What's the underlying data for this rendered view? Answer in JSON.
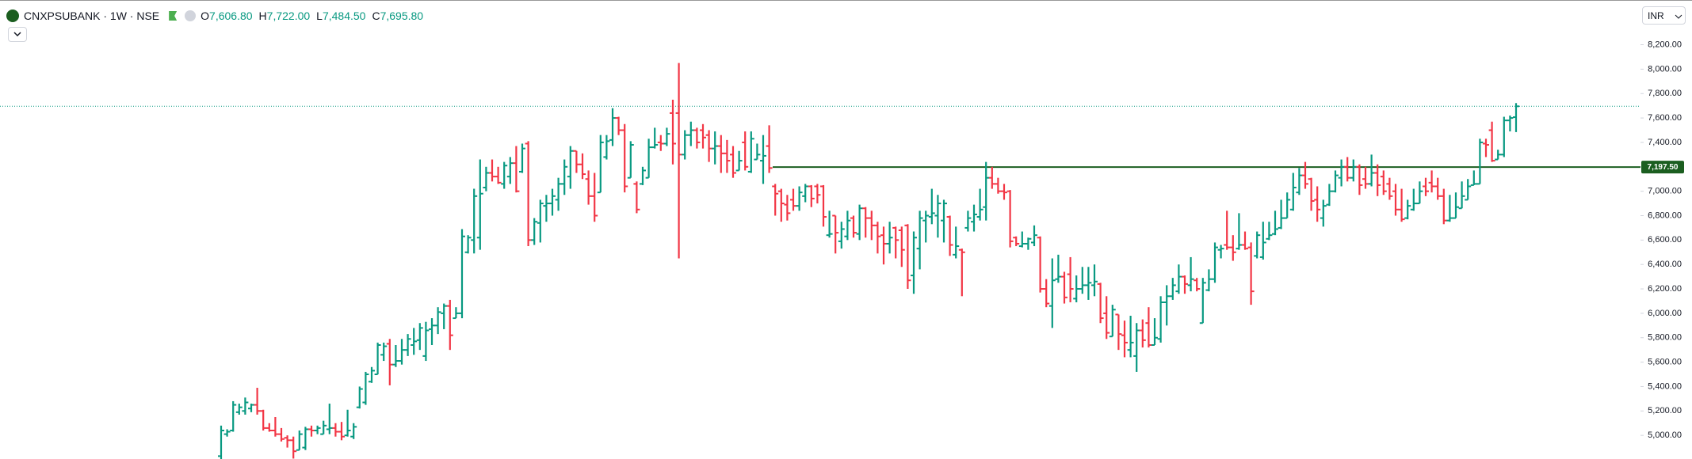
{
  "header": {
    "symbol": "CNXPSUBANK · 1W · NSE",
    "currency": "INR",
    "legend": [
      {
        "label": "O",
        "value": "7,606.80"
      },
      {
        "label": "H",
        "value": "7,722.00"
      },
      {
        "label": "L",
        "value": "7,484.50"
      },
      {
        "label": "C",
        "value": "7,695.80"
      }
    ]
  },
  "chart_data": {
    "type": "ohlc",
    "up_color": "#089981",
    "down_color": "#f23645",
    "ylim": [
      4800,
      8560
    ],
    "yticks": [
      {
        "value": 5000,
        "label": "5,000.00"
      },
      {
        "value": 5200,
        "label": "5,200.00"
      },
      {
        "value": 5400,
        "label": "5,400.00"
      },
      {
        "value": 5600,
        "label": "5,600.00"
      },
      {
        "value": 5800,
        "label": "5,800.00"
      },
      {
        "value": 6000,
        "label": "6,000.00"
      },
      {
        "value": 6200,
        "label": "6,200.00"
      },
      {
        "value": 6400,
        "label": "6,400.00"
      },
      {
        "value": 6600,
        "label": "6,600.00"
      },
      {
        "value": 6800,
        "label": "6,800.00"
      },
      {
        "value": 7000,
        "label": "7,000.00"
      },
      {
        "value": 7200,
        "label": "7,200.00"
      },
      {
        "value": 7400,
        "label": "7,400.00"
      },
      {
        "value": 7600,
        "label": "7,600.00"
      },
      {
        "value": 7800,
        "label": "7,800.00"
      },
      {
        "value": 8000,
        "label": "8,000.00"
      },
      {
        "value": 8200,
        "label": "8,200.00"
      }
    ],
    "hline": {
      "value": 7197.5,
      "label": "7,197.50",
      "color": "#1b5e20"
    },
    "ohlc": [
      [
        4830,
        5080,
        4800,
        5040
      ],
      [
        5010,
        5050,
        4990,
        5030
      ],
      [
        5040,
        5280,
        5030,
        5250
      ],
      [
        5190,
        5260,
        5170,
        5230
      ],
      [
        5200,
        5310,
        5170,
        5270
      ],
      [
        5220,
        5260,
        5190,
        5250
      ],
      [
        5250,
        5390,
        5170,
        5200
      ],
      [
        5200,
        5210,
        5040,
        5060
      ],
      [
        5060,
        5100,
        5030,
        5040
      ],
      [
        5040,
        5150,
        4990,
        5010
      ],
      [
        5010,
        5060,
        4950,
        4970
      ],
      [
        4980,
        5000,
        4900,
        4960
      ],
      [
        4960,
        4990,
        4810,
        4870
      ],
      [
        4880,
        5040,
        4880,
        5010
      ],
      [
        4900,
        5070,
        4880,
        5050
      ],
      [
        5050,
        5080,
        4990,
        5040
      ],
      [
        5040,
        5080,
        5010,
        5060
      ],
      [
        5010,
        5120,
        5010,
        5080
      ],
      [
        5050,
        5260,
        5010,
        5060
      ],
      [
        5060,
        5100,
        4990,
        5030
      ],
      [
        5030,
        5110,
        4960,
        4990
      ],
      [
        5000,
        5210,
        4990,
        5040
      ],
      [
        4990,
        5100,
        4970,
        5070
      ],
      [
        5230,
        5400,
        5220,
        5380
      ],
      [
        5270,
        5520,
        5250,
        5500
      ],
      [
        5440,
        5560,
        5430,
        5530
      ],
      [
        5500,
        5760,
        5500,
        5740
      ],
      [
        5660,
        5760,
        5610,
        5730
      ],
      [
        5750,
        5790,
        5410,
        5580
      ],
      [
        5580,
        5740,
        5560,
        5610
      ],
      [
        5610,
        5790,
        5580,
        5700
      ],
      [
        5700,
        5830,
        5650,
        5790
      ],
      [
        5740,
        5880,
        5660,
        5770
      ],
      [
        5780,
        5920,
        5700,
        5880
      ],
      [
        5650,
        5930,
        5610,
        5860
      ],
      [
        5870,
        5960,
        5740,
        5900
      ],
      [
        5900,
        6050,
        5830,
        6010
      ],
      [
        6000,
        6080,
        5870,
        6060
      ],
      [
        6060,
        6110,
        5700,
        5820
      ],
      [
        5960,
        6050,
        5960,
        6000
      ],
      [
        6000,
        6690,
        5960,
        6630
      ],
      [
        6500,
        6640,
        6490,
        6620
      ],
      [
        6600,
        7020,
        6490,
        6960
      ],
      [
        6620,
        7260,
        6520,
        6980
      ],
      [
        7030,
        7200,
        7000,
        7150
      ],
      [
        7150,
        7260,
        7080,
        7120
      ],
      [
        7120,
        7200,
        7060,
        7070
      ],
      [
        7060,
        7240,
        7020,
        7210
      ],
      [
        7120,
        7280,
        7060,
        7230
      ],
      [
        7230,
        7370,
        6990,
        7000
      ],
      [
        7160,
        7390,
        7150,
        7350
      ],
      [
        7390,
        7410,
        6550,
        6600
      ],
      [
        6600,
        6780,
        6560,
        6750
      ],
      [
        6740,
        6930,
        6580,
        6900
      ],
      [
        6880,
        6970,
        6750,
        6900
      ],
      [
        6900,
        7020,
        6800,
        6960
      ],
      [
        6930,
        7110,
        6840,
        7060
      ],
      [
        7060,
        7260,
        6970,
        7200
      ],
      [
        7120,
        7370,
        7020,
        7330
      ],
      [
        7330,
        7330,
        7150,
        7220
      ],
      [
        7220,
        7310,
        7100,
        7140
      ],
      [
        7100,
        7170,
        6890,
        6960
      ],
      [
        6960,
        7150,
        6750,
        6800
      ],
      [
        6990,
        7460,
        6990,
        7400
      ],
      [
        7280,
        7460,
        7260,
        7410
      ],
      [
        7420,
        7680,
        7370,
        7600
      ],
      [
        7600,
        7610,
        7460,
        7500
      ],
      [
        7500,
        7550,
        6990,
        7040
      ],
      [
        7110,
        7410,
        7110,
        7380
      ],
      [
        7060,
        7080,
        6820,
        6850
      ],
      [
        7060,
        7200,
        7050,
        7170
      ],
      [
        7110,
        7430,
        7110,
        7360
      ],
      [
        7360,
        7520,
        7350,
        7380
      ],
      [
        7400,
        7460,
        7330,
        7390
      ],
      [
        7390,
        7520,
        7370,
        7470
      ],
      [
        7640,
        7750,
        7220,
        7390
      ],
      [
        7640,
        8050,
        6450,
        7300
      ],
      [
        7300,
        7500,
        7260,
        7460
      ],
      [
        7460,
        7570,
        7370,
        7500
      ],
      [
        7500,
        7520,
        7350,
        7400
      ],
      [
        7500,
        7550,
        7350,
        7440
      ],
      [
        7460,
        7500,
        7240,
        7350
      ],
      [
        7350,
        7490,
        7220,
        7370
      ],
      [
        7370,
        7460,
        7150,
        7310
      ],
      [
        7310,
        7420,
        7150,
        7250
      ],
      [
        7300,
        7370,
        7110,
        7150
      ],
      [
        7170,
        7330,
        7170,
        7250
      ],
      [
        7400,
        7490,
        7170,
        7200
      ],
      [
        7160,
        7490,
        7150,
        7430
      ],
      [
        7260,
        7390,
        7260,
        7300
      ],
      [
        7250,
        7460,
        7060,
        7290
      ],
      [
        7370,
        7540,
        7150,
        7190
      ],
      [
        7040,
        7060,
        6800,
        6980
      ],
      [
        7000,
        7020,
        6750,
        6900
      ],
      [
        6890,
        6970,
        6760,
        6820
      ],
      [
        6930,
        7020,
        6840,
        6880
      ],
      [
        6880,
        7040,
        6840,
        6990
      ],
      [
        6960,
        7060,
        6910,
        7040
      ],
      [
        7040,
        7050,
        6870,
        6940
      ],
      [
        7040,
        7060,
        6900,
        6970
      ],
      [
        7040,
        7050,
        6710,
        6790
      ],
      [
        6640,
        6840,
        6620,
        6650
      ],
      [
        6800,
        6800,
        6490,
        6660
      ],
      [
        6590,
        6750,
        6530,
        6690
      ],
      [
        6630,
        6840,
        6600,
        6760
      ],
      [
        6780,
        6800,
        6620,
        6660
      ],
      [
        6650,
        6890,
        6600,
        6860
      ],
      [
        6860,
        6870,
        6620,
        6780
      ],
      [
        6780,
        6840,
        6600,
        6720
      ],
      [
        6720,
        6750,
        6490,
        6630
      ],
      [
        6640,
        6710,
        6400,
        6570
      ],
      [
        6570,
        6750,
        6490,
        6620
      ],
      [
        6700,
        6710,
        6450,
        6600
      ],
      [
        6680,
        6710,
        6380,
        6520
      ],
      [
        6720,
        6730,
        6200,
        6270
      ],
      [
        6310,
        6670,
        6160,
        6620
      ],
      [
        6530,
        6840,
        6360,
        6780
      ],
      [
        6760,
        6840,
        6580,
        6800
      ],
      [
        6790,
        7020,
        6730,
        6820
      ],
      [
        6800,
        6970,
        6620,
        6900
      ],
      [
        6760,
        6930,
        6580,
        6900
      ],
      [
        6790,
        6800,
        6470,
        6560
      ],
      [
        6480,
        6710,
        6450,
        6550
      ],
      [
        6520,
        6530,
        6140,
        6500
      ],
      [
        6700,
        6840,
        6670,
        6780
      ],
      [
        6750,
        6890,
        6670,
        6810
      ],
      [
        6790,
        7020,
        6760,
        6850
      ],
      [
        6870,
        7240,
        6760,
        7110
      ],
      [
        7110,
        7200,
        7020,
        7060
      ],
      [
        7060,
        7110,
        6980,
        7000
      ],
      [
        7000,
        7060,
        6930,
        6990
      ],
      [
        7000,
        7010,
        6540,
        6590
      ],
      [
        6620,
        6630,
        6550,
        6570
      ],
      [
        6550,
        6670,
        6540,
        6570
      ],
      [
        6570,
        6620,
        6520,
        6610
      ],
      [
        6580,
        6720,
        6550,
        6640
      ],
      [
        6620,
        6630,
        6170,
        6200
      ],
      [
        6200,
        6280,
        6050,
        6080
      ],
      [
        6060,
        6450,
        5880,
        6270
      ],
      [
        6280,
        6480,
        6250,
        6300
      ],
      [
        6300,
        6340,
        6080,
        6130
      ],
      [
        6320,
        6460,
        6090,
        6200
      ],
      [
        6120,
        6310,
        6090,
        6200
      ],
      [
        6200,
        6380,
        6160,
        6230
      ],
      [
        6230,
        6380,
        6110,
        6250
      ],
      [
        6230,
        6400,
        6140,
        6260
      ],
      [
        6240,
        6250,
        5920,
        5960
      ],
      [
        6000,
        6140,
        5790,
        5840
      ],
      [
        5810,
        6070,
        5810,
        6030
      ],
      [
        5990,
        5990,
        5700,
        5830
      ],
      [
        5820,
        5940,
        5640,
        5760
      ],
      [
        5700,
        5980,
        5640,
        5760
      ],
      [
        5650,
        5920,
        5520,
        5860
      ],
      [
        5860,
        5950,
        5720,
        5780
      ],
      [
        5920,
        6050,
        5720,
        5740
      ],
      [
        5740,
        5960,
        5740,
        5800
      ],
      [
        5790,
        6140,
        5760,
        6090
      ],
      [
        6090,
        6230,
        5900,
        6140
      ],
      [
        6140,
        6290,
        6110,
        6230
      ],
      [
        6180,
        6400,
        6160,
        6300
      ],
      [
        6300,
        6310,
        6160,
        6240
      ],
      [
        6230,
        6460,
        6180,
        6280
      ],
      [
        6270,
        6290,
        6180,
        6200
      ],
      [
        5920,
        6290,
        5920,
        6250
      ],
      [
        6190,
        6360,
        6180,
        6280
      ],
      [
        6280,
        6580,
        6250,
        6540
      ],
      [
        6520,
        6560,
        6450,
        6530
      ],
      [
        6560,
        6840,
        6520,
        6540
      ],
      [
        6540,
        6640,
        6430,
        6500
      ],
      [
        6530,
        6820,
        6520,
        6560
      ],
      [
        6560,
        6670,
        6520,
        6530
      ],
      [
        6540,
        6580,
        6070,
        6180
      ],
      [
        6470,
        6670,
        6450,
        6640
      ],
      [
        6460,
        6750,
        6440,
        6580
      ],
      [
        6610,
        6750,
        6600,
        6640
      ],
      [
        6650,
        6840,
        6640,
        6690
      ],
      [
        6700,
        6930,
        6690,
        6780
      ],
      [
        6780,
        6990,
        6780,
        6930
      ],
      [
        6850,
        7150,
        6840,
        7030
      ],
      [
        6990,
        7190,
        6970,
        7130
      ],
      [
        7130,
        7240,
        7020,
        7060
      ],
      [
        7100,
        7110,
        6840,
        6920
      ],
      [
        6930,
        7040,
        6750,
        6850
      ],
      [
        6780,
        6930,
        6710,
        6880
      ],
      [
        6890,
        7060,
        6880,
        7000
      ],
      [
        7000,
        7170,
        6990,
        7130
      ],
      [
        7110,
        7260,
        7040,
        7200
      ],
      [
        7200,
        7280,
        7080,
        7110
      ],
      [
        7110,
        7260,
        7080,
        7200
      ],
      [
        7200,
        7220,
        6970,
        7050
      ],
      [
        7100,
        7200,
        7020,
        7060
      ],
      [
        7060,
        7300,
        7040,
        7150
      ],
      [
        7150,
        7220,
        6960,
        7050
      ],
      [
        7120,
        7170,
        6970,
        7000
      ],
      [
        7060,
        7110,
        6930,
        6960
      ],
      [
        7000,
        7060,
        6800,
        6850
      ],
      [
        6850,
        7020,
        6750,
        6770
      ],
      [
        6780,
        6930,
        6770,
        6880
      ],
      [
        6850,
        7020,
        6840,
        6900
      ],
      [
        6900,
        7080,
        6900,
        7000
      ],
      [
        7040,
        7110,
        6960,
        7000
      ],
      [
        7070,
        7170,
        6990,
        7040
      ],
      [
        7040,
        7110,
        6930,
        6960
      ],
      [
        6960,
        7020,
        6730,
        6760
      ],
      [
        6760,
        6970,
        6750,
        6780
      ],
      [
        6780,
        6990,
        6780,
        6870
      ],
      [
        6860,
        7080,
        6860,
        6960
      ],
      [
        6930,
        7100,
        6930,
        7040
      ],
      [
        7050,
        7170,
        7050,
        7060
      ],
      [
        7060,
        7430,
        7060,
        7400
      ],
      [
        7390,
        7430,
        7280,
        7380
      ],
      [
        7500,
        7570,
        7240,
        7250
      ],
      [
        7260,
        7340,
        7260,
        7300
      ],
      [
        7300,
        7610,
        7280,
        7580
      ],
      [
        7580,
        7620,
        7490,
        7600
      ],
      [
        7606.8,
        7722,
        7484.5,
        7695.8
      ]
    ]
  }
}
